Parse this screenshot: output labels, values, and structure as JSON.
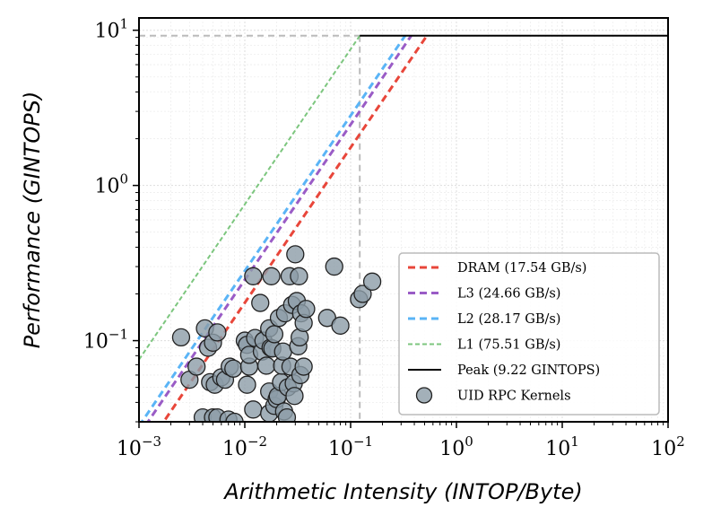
{
  "chart_data": {
    "type": "scatter",
    "title": "",
    "xlabel": "Arithmetic Intensity (INTOP/Byte)",
    "ylabel": "Performance (GINTOPS)",
    "xscale": "log",
    "yscale": "log",
    "xlim": [
      0.001,
      100
    ],
    "ylim": [
      0.03,
      12
    ],
    "x_ticks": [
      {
        "value": 0.001,
        "base": "10",
        "exp": "−3"
      },
      {
        "value": 0.01,
        "base": "10",
        "exp": "−2"
      },
      {
        "value": 0.1,
        "base": "10",
        "exp": "−1"
      },
      {
        "value": 1,
        "base": "10",
        "exp": "0"
      },
      {
        "value": 10,
        "base": "10",
        "exp": "1"
      },
      {
        "value": 100,
        "base": "10",
        "exp": "2"
      }
    ],
    "y_ticks": [
      {
        "value": 0.1,
        "base": "10",
        "exp": "−1"
      },
      {
        "value": 1,
        "base": "10",
        "exp": "0"
      },
      {
        "value": 10,
        "base": "10",
        "exp": "1"
      }
    ],
    "grid": true,
    "legend_position": "bottom-right",
    "ridge_point": 0.122,
    "peak": {
      "label": "Peak (9.22 GINTOPS)",
      "value": 9.22,
      "color": "#000000"
    },
    "rooflines": [
      {
        "label": "DRAM (17.54 GB/s)",
        "bandwidth": 17.54,
        "color": "#e8463a",
        "dash": "8,5",
        "width": 3
      },
      {
        "label": "L3 (24.66 GB/s)",
        "bandwidth": 24.66,
        "color": "#9a5cc6",
        "dash": "8,5",
        "width": 3
      },
      {
        "label": "L2 (28.17 GB/s)",
        "bandwidth": 28.17,
        "color": "#5ab4f6",
        "dash": "8,5",
        "width": 3
      },
      {
        "label": "L1 (75.51 GB/s)",
        "bandwidth": 75.51,
        "color": "#7cc67e",
        "dash": "5,3",
        "width": 2
      }
    ],
    "scatter_series": {
      "label": "UID RPC Kernels",
      "color": "#8c9ca8",
      "edge_color": "#222222",
      "points": [
        [
          0.0025,
          0.105
        ],
        [
          0.003,
          0.056
        ],
        [
          0.0035,
          0.068
        ],
        [
          0.004,
          0.032
        ],
        [
          0.0042,
          0.12
        ],
        [
          0.0045,
          0.09
        ],
        [
          0.0047,
          0.054
        ],
        [
          0.005,
          0.032
        ],
        [
          0.005,
          0.097
        ],
        [
          0.0052,
          0.052
        ],
        [
          0.0055,
          0.113
        ],
        [
          0.0055,
          0.032
        ],
        [
          0.006,
          0.058
        ],
        [
          0.0065,
          0.056
        ],
        [
          0.007,
          0.031
        ],
        [
          0.0072,
          0.068
        ],
        [
          0.0078,
          0.066
        ],
        [
          0.008,
          0.03
        ],
        [
          0.01,
          0.1
        ],
        [
          0.0105,
          0.094
        ],
        [
          0.0105,
          0.052
        ],
        [
          0.011,
          0.068
        ],
        [
          0.011,
          0.081
        ],
        [
          0.012,
          0.036
        ],
        [
          0.0125,
          0.104
        ],
        [
          0.012,
          0.26
        ],
        [
          0.014,
          0.175
        ],
        [
          0.0145,
          0.085
        ],
        [
          0.015,
          0.1
        ],
        [
          0.016,
          0.069
        ],
        [
          0.017,
          0.12
        ],
        [
          0.017,
          0.034
        ],
        [
          0.017,
          0.047
        ],
        [
          0.0175,
          0.09
        ],
        [
          0.0178,
          0.26
        ],
        [
          0.0182,
          0.089
        ],
        [
          0.019,
          0.11
        ],
        [
          0.019,
          0.038
        ],
        [
          0.02,
          0.042
        ],
        [
          0.0205,
          0.044
        ],
        [
          0.021,
          0.14
        ],
        [
          0.022,
          0.054
        ],
        [
          0.0225,
          0.069
        ],
        [
          0.023,
          0.085
        ],
        [
          0.0235,
          0.035
        ],
        [
          0.024,
          0.15
        ],
        [
          0.025,
          0.032
        ],
        [
          0.0255,
          0.05
        ],
        [
          0.0265,
          0.26
        ],
        [
          0.027,
          0.068
        ],
        [
          0.028,
          0.17
        ],
        [
          0.029,
          0.053
        ],
        [
          0.0295,
          0.044
        ],
        [
          0.03,
          0.36
        ],
        [
          0.031,
          0.18
        ],
        [
          0.032,
          0.092
        ],
        [
          0.0325,
          0.26
        ],
        [
          0.033,
          0.105
        ],
        [
          0.0335,
          0.06
        ],
        [
          0.034,
          0.15
        ],
        [
          0.036,
          0.13
        ],
        [
          0.036,
          0.068
        ],
        [
          0.038,
          0.16
        ],
        [
          0.06,
          0.14
        ],
        [
          0.07,
          0.3
        ],
        [
          0.08,
          0.125
        ],
        [
          0.12,
          0.185
        ],
        [
          0.13,
          0.2
        ],
        [
          0.16,
          0.24
        ]
      ]
    }
  }
}
